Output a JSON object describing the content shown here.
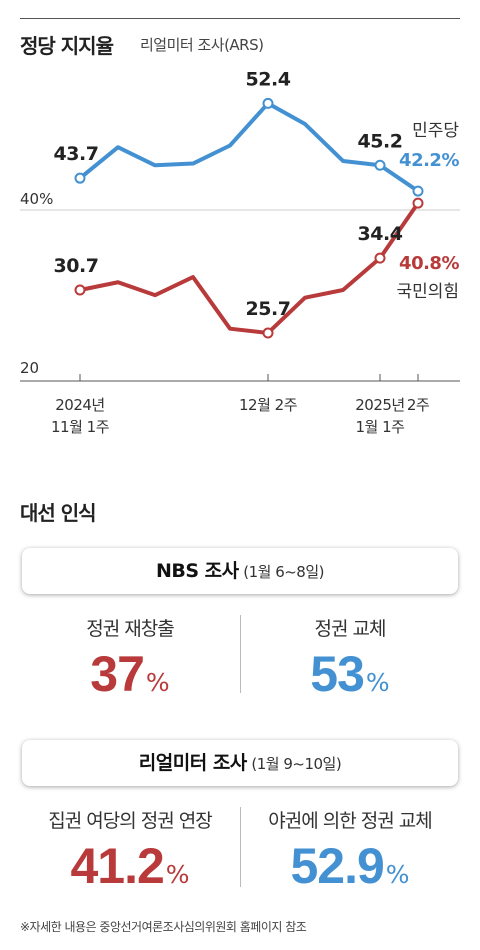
{
  "header": {
    "title": "정당 지지율",
    "subtitle": "리얼미터 조사(ARS)"
  },
  "chart_data": {
    "type": "line",
    "ylim": [
      20,
      55
    ],
    "yticks": [
      {
        "value": 40,
        "label": "40%"
      },
      {
        "value": 20,
        "label": "20"
      }
    ],
    "x_count": 10,
    "x_tick_labels": [
      {
        "index": 0,
        "lines": [
          "2024년",
          "11월 1주"
        ]
      },
      {
        "index": 5,
        "lines": [
          "12월 2주"
        ]
      },
      {
        "index": 8,
        "lines": [
          "2025년",
          "1월 1주"
        ]
      },
      {
        "index": 9,
        "lines": [
          "2주"
        ]
      }
    ],
    "series": [
      {
        "name": "민주당",
        "color": "#4391d2",
        "values": [
          43.7,
          47.3,
          45.2,
          45.4,
          47.5,
          52.4,
          50.0,
          45.7,
          45.2,
          42.2
        ],
        "labeled": [
          0,
          5,
          8
        ],
        "last_label": "42.2%"
      },
      {
        "name": "국민의힘",
        "color": "#b83a3a",
        "values": [
          30.7,
          31.6,
          30.1,
          32.2,
          26.2,
          25.7,
          29.8,
          30.7,
          34.4,
          40.8
        ],
        "labeled": [
          0,
          5,
          8
        ],
        "last_label": "40.8%"
      }
    ]
  },
  "section": {
    "title": "대선 인식"
  },
  "surveys": [
    {
      "name": "NBS 조사",
      "date": "(1월 6~8일)",
      "left": {
        "label": "정권 재창출",
        "value": "37",
        "unit": "%"
      },
      "right": {
        "label": "정권 교체",
        "value": "53",
        "unit": "%"
      }
    },
    {
      "name": "리얼미터 조사",
      "date": "(1월 9~10일)",
      "left": {
        "label": "집권 여당의 정권 연장",
        "value": "41.2",
        "unit": "%"
      },
      "right": {
        "label": "야권에 의한 정권 교체",
        "value": "52.9",
        "unit": "%"
      }
    }
  ],
  "footnote": "※자세한 내용은 중앙선거여론조사심의위원회 홈페이지 참조",
  "colors": {
    "red": "#b83a3a",
    "blue": "#4391d2"
  }
}
